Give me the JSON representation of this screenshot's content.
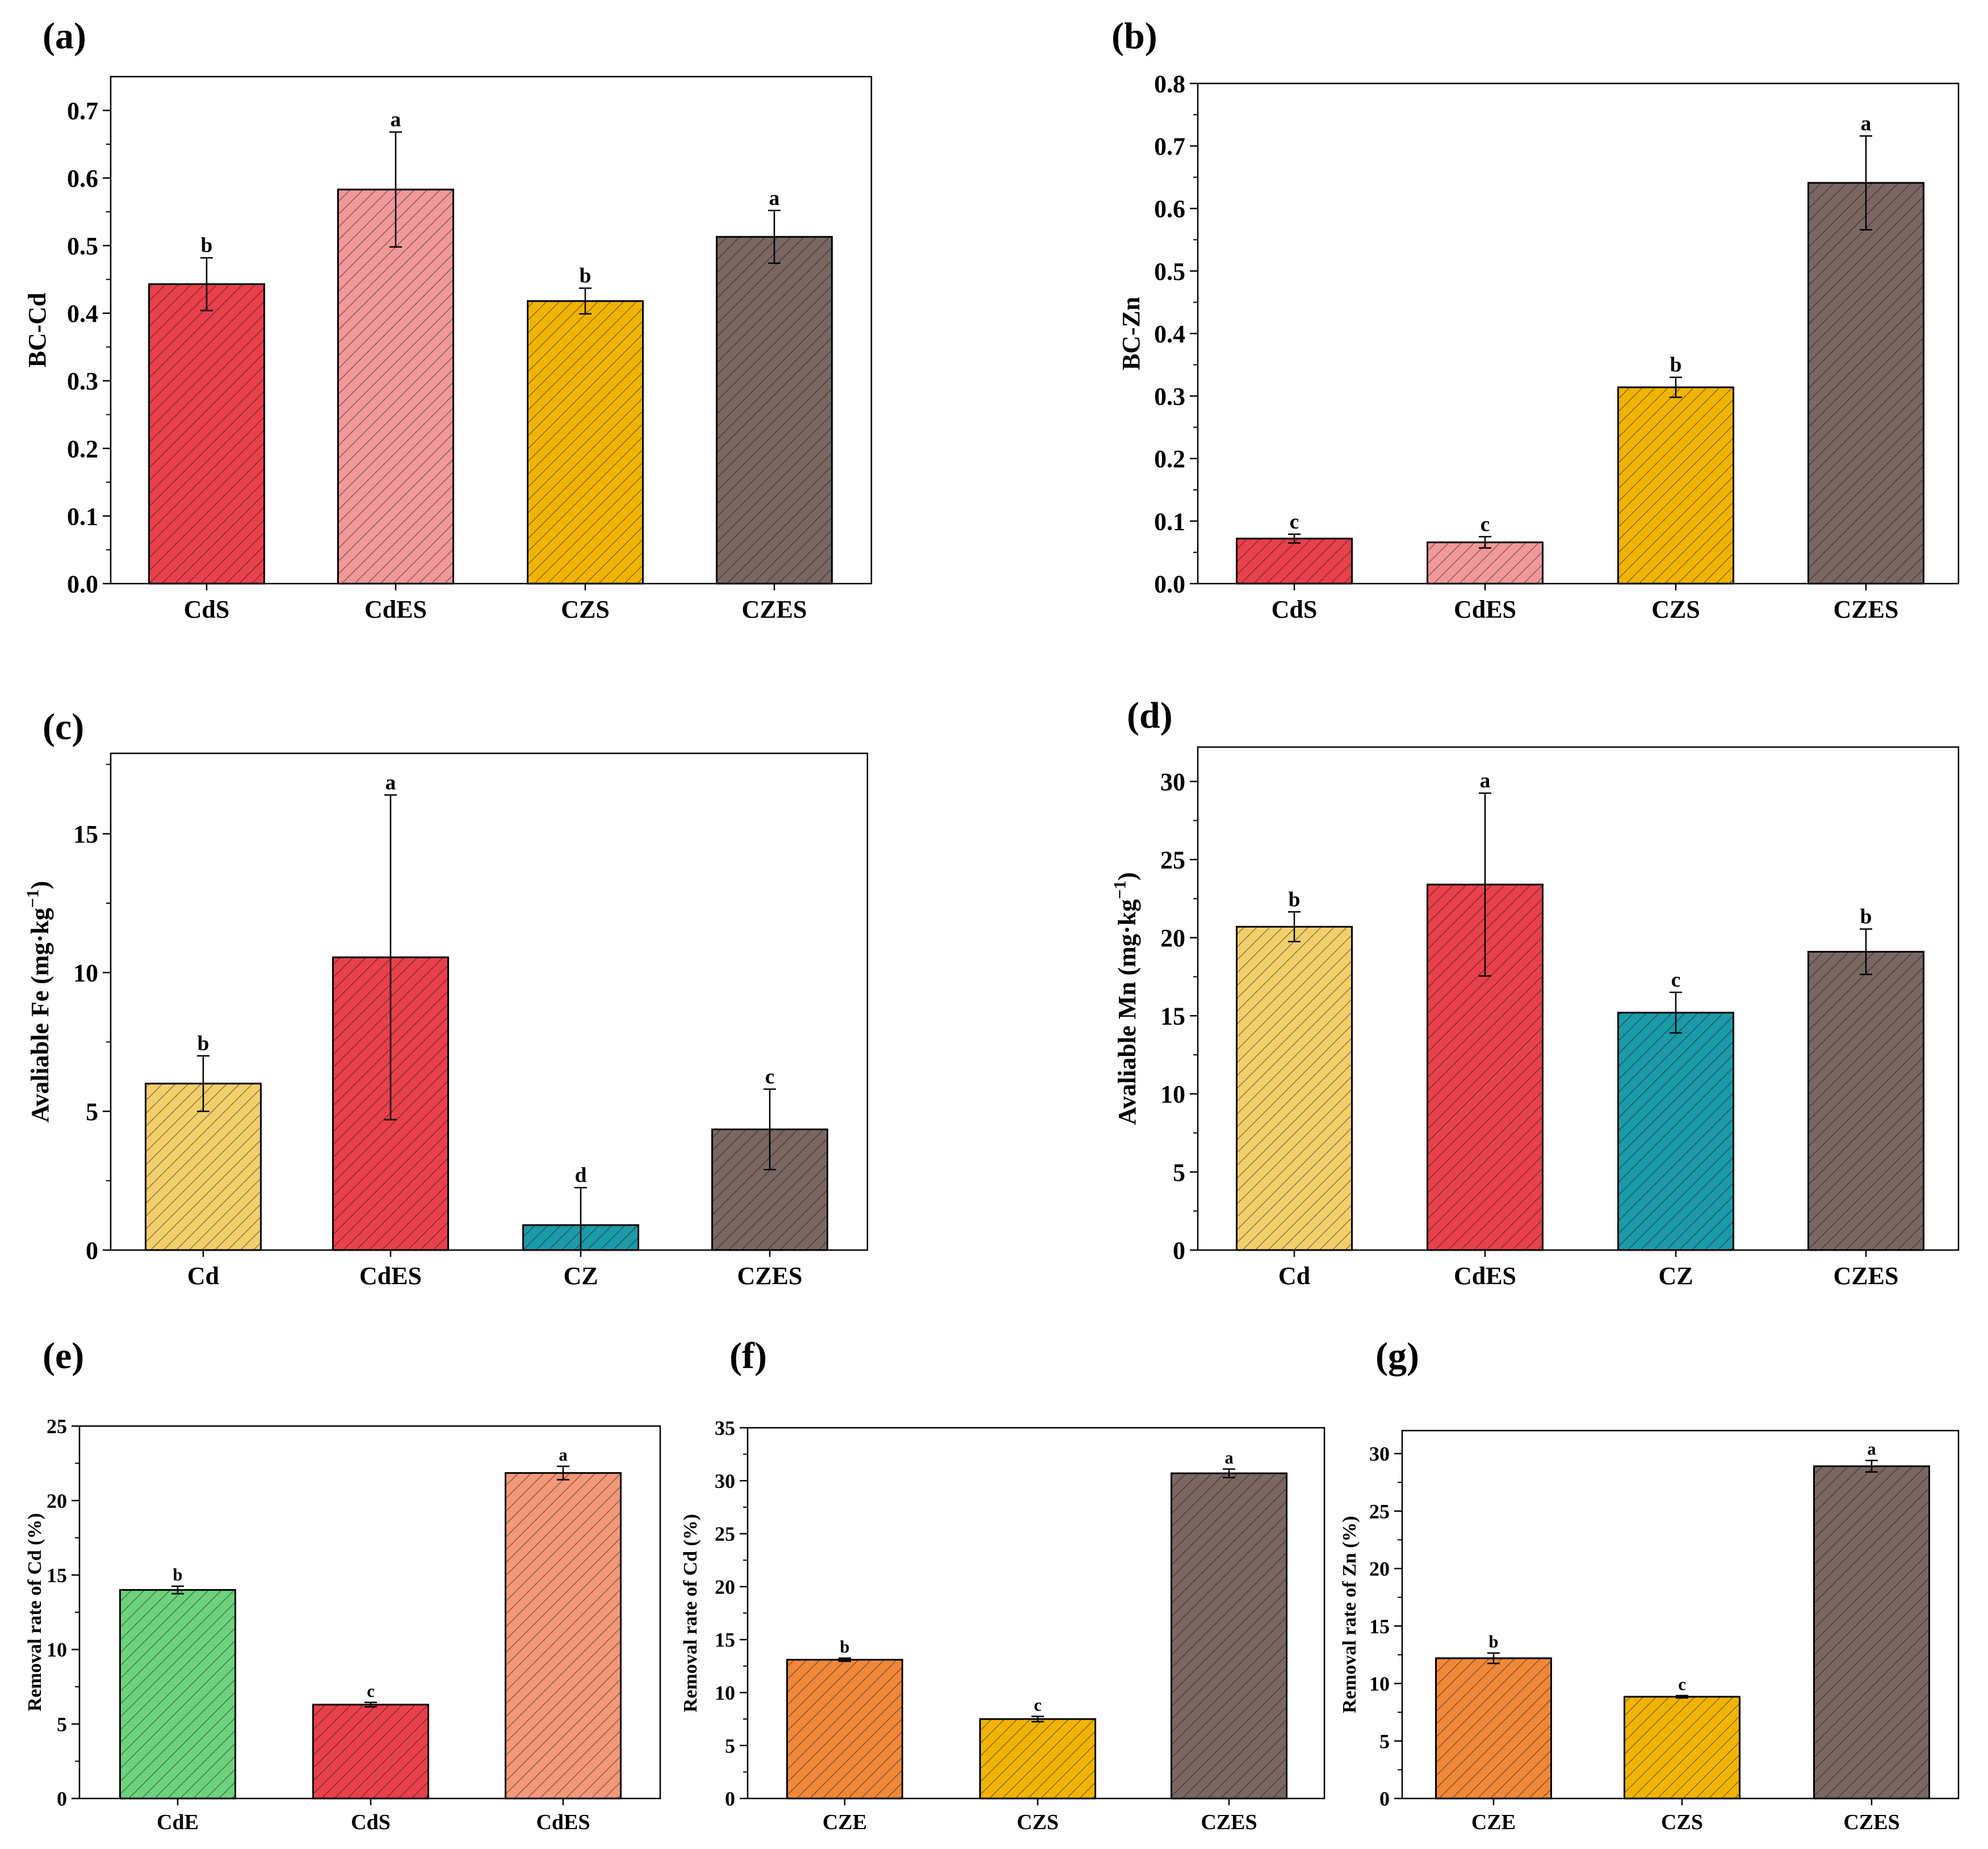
{
  "hatch_colors": {
    "red": "#E8414B",
    "pink": "#F0989A",
    "yellow": "#F0B400",
    "brown": "#7A6762",
    "lightyellow": "#F2CF6A",
    "teal": "#1C9AA8",
    "green": "#6DD27E",
    "salmon": "#F39878",
    "orange": "#F0883A"
  },
  "chart_data": [
    {
      "panel": "(a)",
      "type": "bar",
      "ylabel": "BC-Cd",
      "categories": [
        "CdS",
        "CdES",
        "CZS",
        "CZES"
      ],
      "values": [
        0.443,
        0.583,
        0.418,
        0.513
      ],
      "errors": [
        0.039,
        0.085,
        0.019,
        0.039
      ],
      "letters": [
        "b",
        "a",
        "b",
        "a"
      ],
      "colors": [
        "red",
        "pink",
        "yellow",
        "brown"
      ],
      "ylim": [
        0,
        0.75
      ],
      "major_ticks": [
        0.0,
        0.1,
        0.2,
        0.3,
        0.4,
        0.5,
        0.6,
        0.7
      ],
      "tick_labels": [
        "0.0",
        "0.1",
        "0.2",
        "0.3",
        "0.4",
        "0.5",
        "0.6",
        "0.7"
      ]
    },
    {
      "panel": "(b)",
      "type": "bar",
      "ylabel": "BC-Zn",
      "categories": [
        "CdS",
        "CdES",
        "CZS",
        "CZES"
      ],
      "values": [
        0.072,
        0.066,
        0.314,
        0.641
      ],
      "errors": [
        0.007,
        0.009,
        0.016,
        0.075
      ],
      "letters": [
        "c",
        "c",
        "b",
        "a"
      ],
      "colors": [
        "red",
        "pink",
        "yellow",
        "brown"
      ],
      "ylim": [
        0,
        0.8
      ],
      "major_ticks": [
        0.0,
        0.1,
        0.2,
        0.3,
        0.4,
        0.5,
        0.6,
        0.7,
        0.8
      ],
      "tick_labels": [
        "0.0",
        "0.1",
        "0.2",
        "0.3",
        "0.4",
        "0.5",
        "0.6",
        "0.7",
        "0.8"
      ]
    },
    {
      "panel": "(c)",
      "type": "bar",
      "ylabel_main": "Avaliable Fe (mg·kg",
      "ylabel_sup": "−1",
      "ylabel_end": ")",
      "categories": [
        "Cd",
        "CdES",
        "CZ",
        "CZES"
      ],
      "values": [
        6.0,
        10.55,
        0.9,
        4.35
      ],
      "errors": [
        1.0,
        5.85,
        1.35,
        1.45
      ],
      "letters": [
        "b",
        "a",
        "d",
        "c"
      ],
      "colors": [
        "lightyellow",
        "red",
        "teal",
        "brown"
      ],
      "ylim": [
        0,
        17.9
      ],
      "major_ticks": [
        0,
        5,
        10,
        15
      ],
      "tick_labels": [
        "0",
        "5",
        "10",
        "15"
      ]
    },
    {
      "panel": "(d)",
      "type": "bar",
      "ylabel_main": "Avaliable Mn (mg·kg",
      "ylabel_sup": "−1",
      "ylabel_end": ")",
      "categories": [
        "Cd",
        "CdES",
        "CZ",
        "CZES"
      ],
      "values": [
        20.7,
        23.4,
        15.2,
        19.1
      ],
      "errors": [
        0.95,
        5.85,
        1.3,
        1.45
      ],
      "letters": [
        "b",
        "a",
        "c",
        "b"
      ],
      "colors": [
        "lightyellow",
        "red",
        "teal",
        "brown"
      ],
      "ylim": [
        0,
        32.2
      ],
      "major_ticks": [
        0,
        5,
        10,
        15,
        20,
        25,
        30
      ],
      "tick_labels": [
        "0",
        "5",
        "10",
        "15",
        "20",
        "25",
        "30"
      ]
    },
    {
      "panel": "(e)",
      "type": "bar",
      "ylabel": "Removal rate of Cd (%)",
      "categories": [
        "CdE",
        "CdS",
        "CdES"
      ],
      "values": [
        14.0,
        6.3,
        21.85
      ],
      "errors": [
        0.25,
        0.15,
        0.45
      ],
      "letters": [
        "b",
        "c",
        "a"
      ],
      "colors": [
        "green",
        "red",
        "salmon"
      ],
      "ylim": [
        0,
        25
      ],
      "major_ticks": [
        0,
        5,
        10,
        15,
        20,
        25
      ],
      "tick_labels": [
        "0",
        "5",
        "10",
        "15",
        "20",
        "25"
      ]
    },
    {
      "panel": "(f)",
      "type": "bar",
      "ylabel": "Removal rate of Cd (%)",
      "categories": [
        "CZE",
        "CZS",
        "CZES"
      ],
      "values": [
        13.1,
        7.5,
        30.7
      ],
      "errors": [
        0.15,
        0.25,
        0.4
      ],
      "letters": [
        "b",
        "c",
        "a"
      ],
      "colors": [
        "orange",
        "yellow",
        "brown"
      ],
      "ylim": [
        0,
        35
      ],
      "major_ticks": [
        0,
        5,
        10,
        15,
        20,
        25,
        30,
        35
      ],
      "tick_labels": [
        "0",
        "5",
        "10",
        "15",
        "20",
        "25",
        "30",
        "35"
      ]
    },
    {
      "panel": "(g)",
      "type": "bar",
      "ylabel": "Removal rate of Zn (%)",
      "categories": [
        "CZE",
        "CZS",
        "CZES"
      ],
      "values": [
        12.2,
        8.85,
        28.9
      ],
      "errors": [
        0.45,
        0.1,
        0.5
      ],
      "letters": [
        "b",
        "c",
        "a"
      ],
      "colors": [
        "orange",
        "yellow",
        "brown"
      ],
      "ylim": [
        0,
        32
      ],
      "major_ticks": [
        0,
        5,
        10,
        15,
        20,
        25,
        30
      ],
      "tick_labels": [
        "0",
        "5",
        "10",
        "15",
        "20",
        "25",
        "30"
      ]
    }
  ]
}
